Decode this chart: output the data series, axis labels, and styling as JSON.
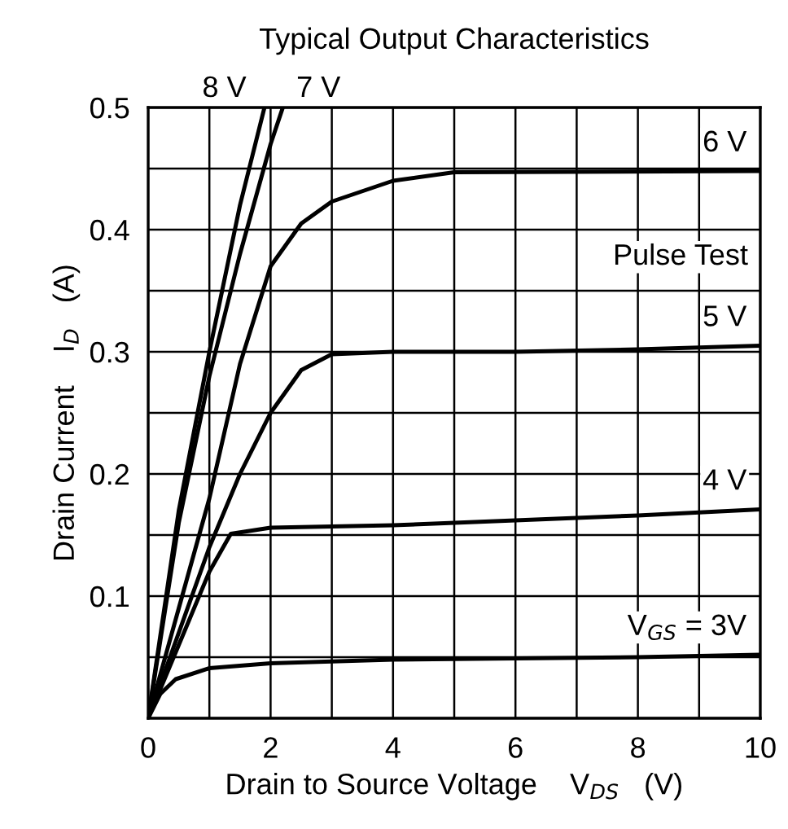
{
  "chart_data": {
    "type": "line",
    "title": "Typical Output Characteristics",
    "xlabel": "Drain to Source Voltage    V$_{DS}$   (V)",
    "ylabel": "Drain Current    I$_{D}$   (A)",
    "annotations": [
      "Pulse Test"
    ],
    "series": [
      {
        "name": "V$_{GS}$ = 3V",
        "color": "#000000",
        "x": [
          0,
          0.2,
          0.45,
          1,
          2,
          4,
          6,
          8,
          10
        ],
        "values": [
          0,
          0.02,
          0.032,
          0.041,
          0.045,
          0.048,
          0.049,
          0.05,
          0.052
        ]
      },
      {
        "name": "4 V",
        "color": "#000000",
        "x": [
          0,
          0.5,
          1,
          1.35,
          2,
          4,
          6,
          8,
          10
        ],
        "values": [
          0,
          0.06,
          0.12,
          0.151,
          0.156,
          0.158,
          0.162,
          0.166,
          0.171
        ]
      },
      {
        "name": "5 V",
        "color": "#000000",
        "x": [
          0,
          0.5,
          1,
          1.5,
          2,
          2.5,
          3,
          4,
          6,
          8,
          10
        ],
        "values": [
          0,
          0.07,
          0.14,
          0.2,
          0.25,
          0.285,
          0.298,
          0.3,
          0.3,
          0.302,
          0.305
        ]
      },
      {
        "name": "6 V",
        "color": "#000000",
        "x": [
          0,
          0.5,
          1,
          1.5,
          2,
          2.5,
          3,
          4,
          5,
          10
        ],
        "values": [
          0,
          0.09,
          0.18,
          0.29,
          0.37,
          0.405,
          0.423,
          0.44,
          0.447,
          0.448
        ]
      },
      {
        "name": "7 V",
        "color": "#000000",
        "x": [
          0,
          0.5,
          1,
          1.5,
          2,
          2.2
        ],
        "values": [
          0,
          0.16,
          0.28,
          0.38,
          0.47,
          0.5
        ]
      },
      {
        "name": "8 V",
        "color": "#000000",
        "x": [
          0,
          0.5,
          1,
          1.5,
          1.9
        ],
        "values": [
          0,
          0.17,
          0.3,
          0.42,
          0.5
        ]
      }
    ],
    "xlim": [
      0,
      10
    ],
    "ylim": [
      0,
      0.5
    ],
    "xticks": [
      0,
      {
        "value": 1,
        "label": null
      },
      2,
      {
        "value": 3,
        "label": null
      },
      4,
      {
        "value": 5,
        "label": null
      },
      6,
      {
        "value": 7,
        "label": null
      },
      8,
      {
        "value": 9,
        "label": null
      },
      10
    ],
    "yticks": [
      {
        "value": 0,
        "label": null
      },
      {
        "value": 0.05,
        "label": null
      },
      0.1,
      {
        "value": 0.15,
        "label": null
      },
      0.2,
      {
        "value": 0.25,
        "label": null
      },
      0.3,
      {
        "value": 0.35,
        "label": null
      },
      0.4,
      {
        "value": 0.45,
        "label": null
      },
      0.5
    ],
    "grid": true,
    "marker": "none",
    "line_style": "solid",
    "legend": false
  }
}
